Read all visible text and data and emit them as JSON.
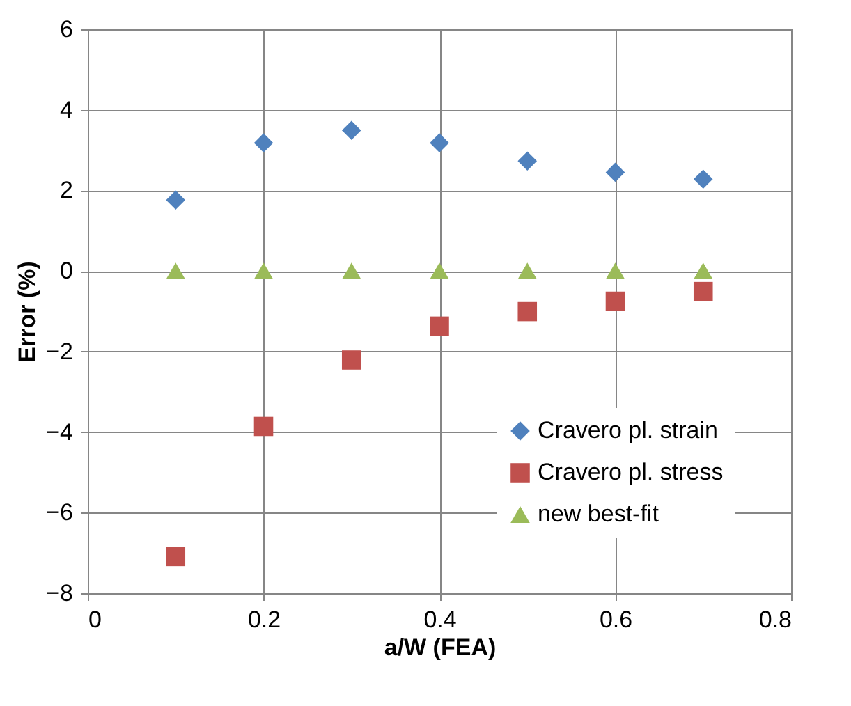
{
  "chart_data": {
    "type": "scatter",
    "xlabel": "a/W (FEA)",
    "ylabel": "Error (%)",
    "x": [
      0.1,
      0.2,
      0.3,
      0.4,
      0.5,
      0.6,
      0.7
    ],
    "series": [
      {
        "name": "Cravero pl. strain",
        "color": "#4f81bd",
        "marker": "diamond",
        "values": [
          1.76,
          3.18,
          3.49,
          3.18,
          2.73,
          2.45,
          2.28
        ]
      },
      {
        "name": "Cravero pl. stress",
        "color": "#c0504d",
        "marker": "square",
        "values": [
          -7.09,
          -3.86,
          -2.21,
          -1.37,
          -1.01,
          -0.75,
          -0.51
        ]
      },
      {
        "name": "new best-fit",
        "color": "#9bbb59",
        "marker": "triangle",
        "values": [
          0,
          0,
          0,
          0,
          0,
          0,
          0
        ]
      }
    ],
    "xlim": [
      0,
      0.8
    ],
    "xticks": [
      0,
      0.2,
      0.4,
      0.6,
      0.8
    ],
    "ylim": [
      -8,
      6
    ],
    "yticks": [
      -8,
      -6,
      -4,
      -2,
      0,
      2,
      4,
      6
    ],
    "grid": true,
    "legend": "bottom right"
  }
}
